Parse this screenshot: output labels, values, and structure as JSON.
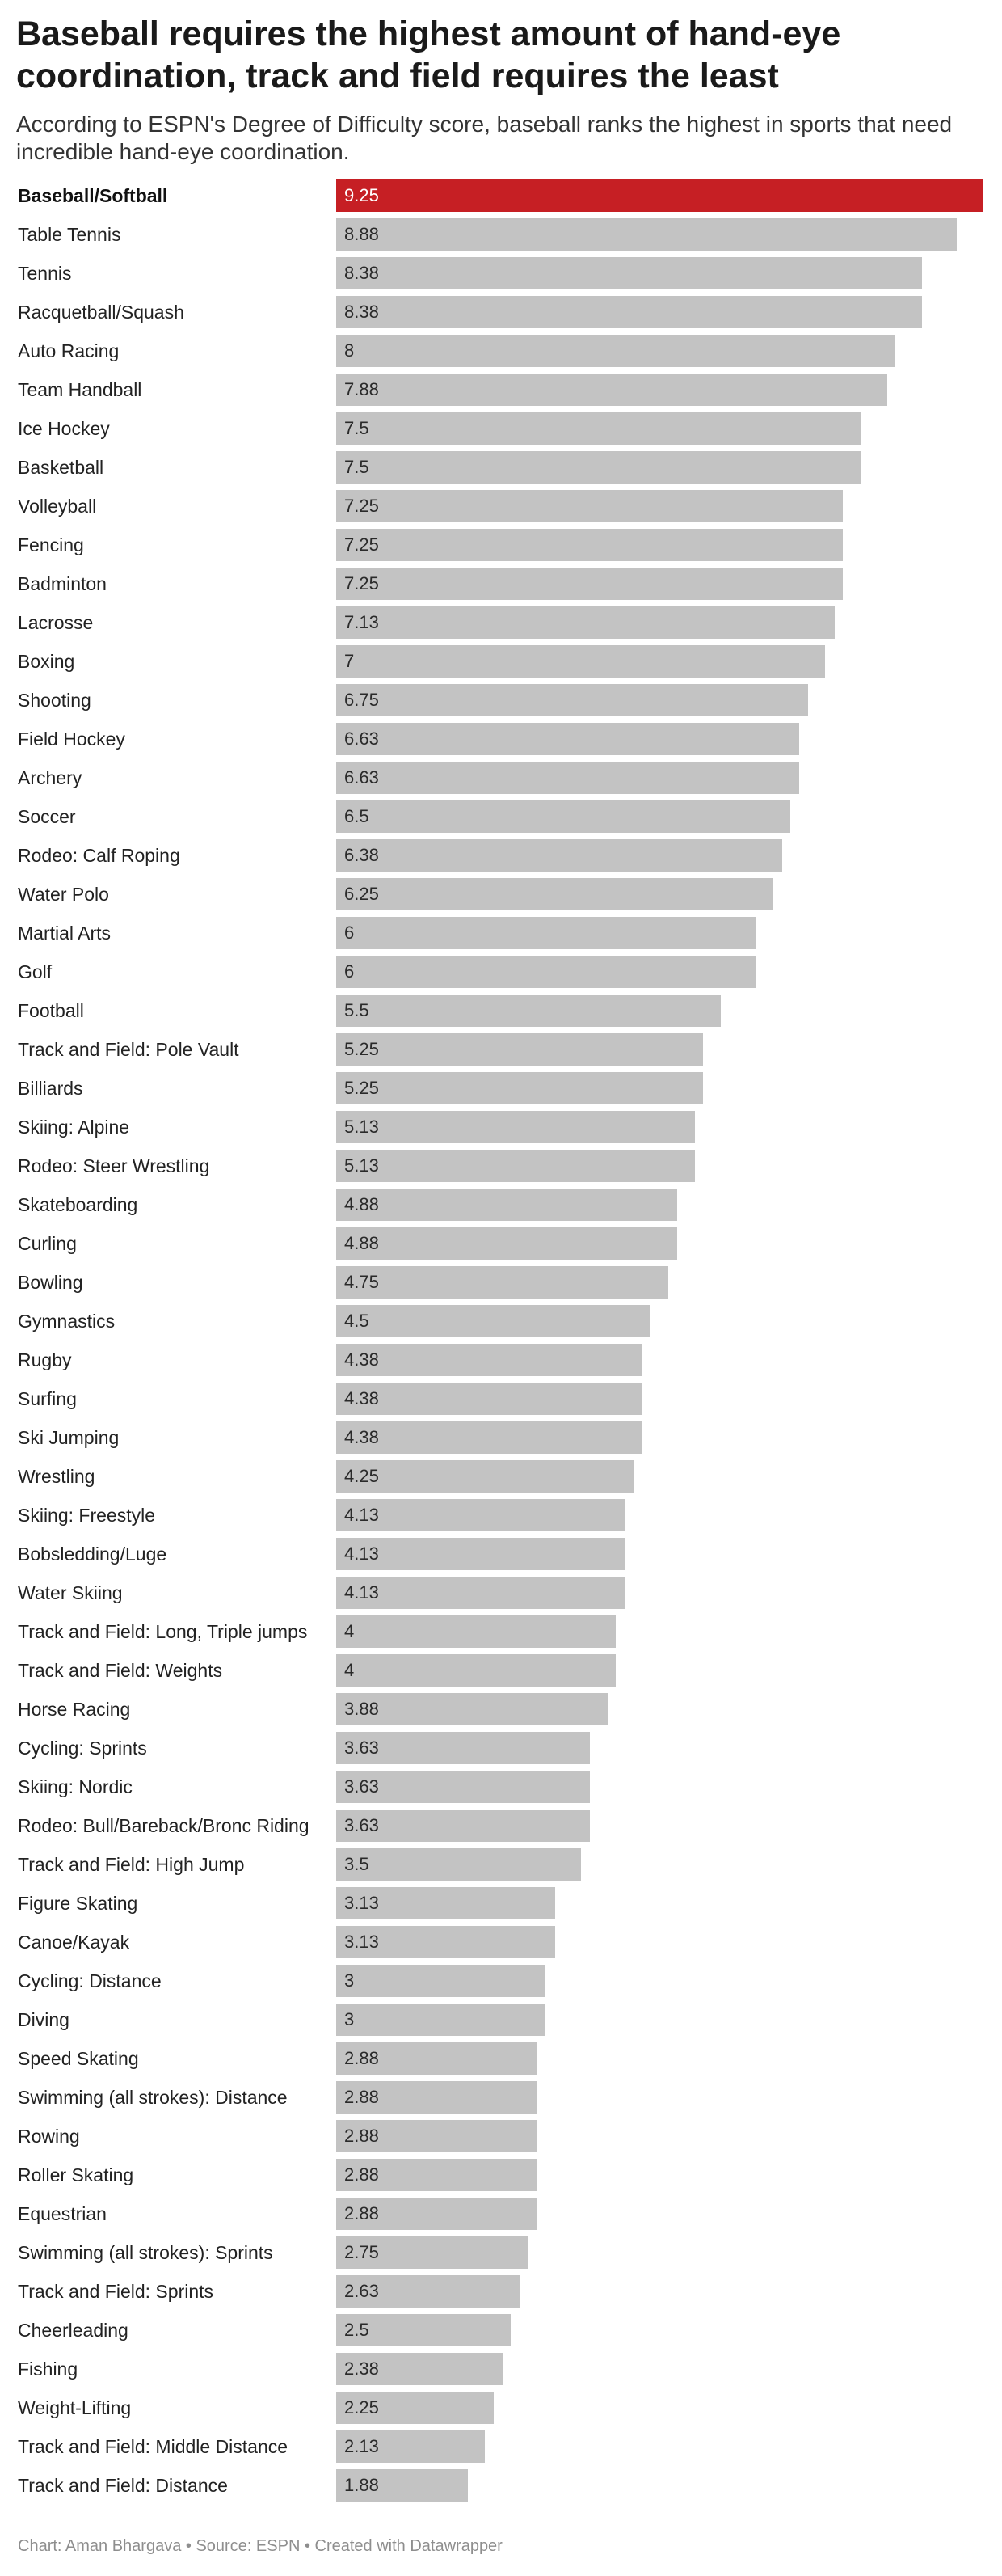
{
  "colors": {
    "highlight": "#c61f24",
    "bar": "#c3c3c3"
  },
  "chart_data": {
    "type": "bar",
    "orientation": "horizontal",
    "title": "Baseball requires the highest amount of hand-eye coordination, track and field requires the least",
    "subtitle": "According to ESPN's Degree of Difficulty score, baseball ranks the highest in sports that need incredible hand-eye coordination.",
    "xlim": [
      0,
      9.25
    ],
    "highlight": "Baseball/Softball",
    "categories": [
      "Baseball/Softball",
      "Table Tennis",
      "Tennis",
      "Racquetball/Squash",
      "Auto Racing",
      "Team Handball",
      "Ice Hockey",
      "Basketball",
      "Volleyball",
      "Fencing",
      "Badminton",
      "Lacrosse",
      "Boxing",
      "Shooting",
      "Field Hockey",
      "Archery",
      "Soccer",
      "Rodeo: Calf Roping",
      "Water Polo",
      "Martial Arts",
      "Golf",
      "Football",
      "Track and Field: Pole Vault",
      "Billiards",
      "Skiing: Alpine",
      "Rodeo: Steer Wrestling",
      "Skateboarding",
      "Curling",
      "Bowling",
      "Gymnastics",
      "Rugby",
      "Surfing",
      "Ski Jumping",
      "Wrestling",
      "Skiing: Freestyle",
      "Bobsledding/Luge",
      "Water Skiing",
      "Track and Field: Long, Triple jumps",
      "Track and Field: Weights",
      "Horse Racing",
      "Cycling: Sprints",
      "Skiing: Nordic",
      "Rodeo: Bull/Bareback/Bronc Riding",
      "Track and Field: High Jump",
      "Figure Skating",
      "Canoe/Kayak",
      "Cycling: Distance",
      "Diving",
      "Speed Skating",
      "Swimming (all strokes): Distance",
      "Rowing",
      "Roller Skating",
      "Equestrian",
      "Swimming (all strokes): Sprints",
      "Track and Field: Sprints",
      "Cheerleading",
      "Fishing",
      "Weight-Lifting",
      "Track and Field: Middle Distance",
      "Track and Field: Distance"
    ],
    "values": [
      9.25,
      8.88,
      8.38,
      8.38,
      8,
      7.88,
      7.5,
      7.5,
      7.25,
      7.25,
      7.25,
      7.13,
      7,
      6.75,
      6.63,
      6.63,
      6.5,
      6.38,
      6.25,
      6,
      6,
      5.5,
      5.25,
      5.25,
      5.13,
      5.13,
      4.88,
      4.88,
      4.75,
      4.5,
      4.38,
      4.38,
      4.38,
      4.25,
      4.13,
      4.13,
      4.13,
      4,
      4,
      3.88,
      3.63,
      3.63,
      3.63,
      3.5,
      3.13,
      3.13,
      3,
      3,
      2.88,
      2.88,
      2.88,
      2.88,
      2.88,
      2.75,
      2.63,
      2.5,
      2.38,
      2.25,
      2.13,
      1.88
    ]
  },
  "footer": "Chart: Aman Bhargava • Source: ESPN • Created with Datawrapper"
}
